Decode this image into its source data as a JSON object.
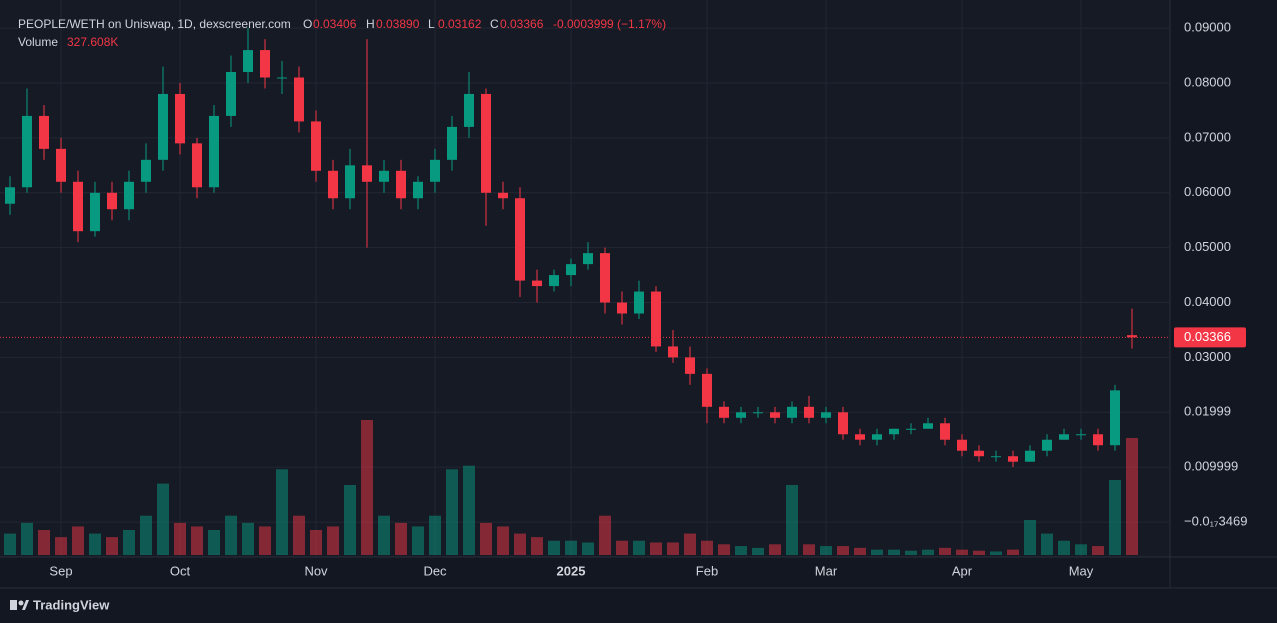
{
  "legend": {
    "title": "PEOPLE/WETH on Uniswap, 1D, dexscreener.com",
    "items": [
      {
        "label": "O",
        "value": "0.03406"
      },
      {
        "label": "H",
        "value": "0.03890"
      },
      {
        "label": "L",
        "value": "0.03162"
      },
      {
        "label": "C",
        "value": "0.03366"
      }
    ],
    "change": "-0.0003999 (−1.17%)",
    "volume_label": "Volume",
    "volume_value": "327.608K"
  },
  "brand": "TradingView",
  "chart_data": {
    "type": "candlestick",
    "up_color": "#089981",
    "down_color": "#f23645",
    "grid": true,
    "categories": [
      null,
      null,
      null,
      "Sep",
      null,
      null,
      null,
      null,
      null,
      null,
      "Oct",
      null,
      null,
      null,
      null,
      null,
      null,
      null,
      "Nov",
      null,
      null,
      null,
      null,
      null,
      null,
      "Dec",
      null,
      null,
      null,
      null,
      null,
      null,
      null,
      "2025",
      null,
      null,
      null,
      null,
      null,
      null,
      null,
      "Feb",
      null,
      null,
      null,
      null,
      null,
      null,
      "Mar",
      null,
      null,
      null,
      null,
      null,
      null,
      null,
      "Apr",
      null,
      null,
      null,
      null,
      null,
      null,
      "May",
      null,
      null,
      null
    ],
    "open": [
      0.058,
      0.061,
      0.074,
      0.068,
      0.062,
      0.053,
      0.06,
      0.057,
      0.062,
      0.066,
      0.078,
      0.069,
      0.061,
      0.074,
      0.082,
      0.086,
      0.081,
      0.081,
      0.073,
      0.064,
      0.059,
      0.065,
      0.062,
      0.064,
      0.059,
      0.062,
      0.066,
      0.072,
      0.078,
      0.06,
      0.059,
      0.044,
      0.043,
      0.045,
      0.047,
      0.049,
      0.04,
      0.038,
      0.042,
      0.032,
      0.03,
      0.027,
      0.021,
      0.019,
      0.02,
      0.02,
      0.019,
      0.021,
      0.019,
      0.02,
      0.016,
      0.015,
      0.016,
      0.017,
      0.017,
      0.018,
      0.015,
      0.013,
      0.012,
      0.012,
      0.011,
      0.013,
      0.015,
      0.016,
      0.016,
      0.014,
      0.03406
    ],
    "high": [
      0.063,
      0.079,
      0.076,
      0.07,
      0.064,
      0.062,
      0.062,
      0.064,
      0.069,
      0.083,
      0.08,
      0.07,
      0.076,
      0.085,
      0.09,
      0.088,
      0.084,
      0.083,
      0.075,
      0.066,
      0.068,
      0.088,
      0.066,
      0.066,
      0.063,
      0.068,
      0.074,
      0.082,
      0.079,
      0.062,
      0.061,
      0.046,
      0.046,
      0.048,
      0.051,
      0.05,
      0.042,
      0.044,
      0.043,
      0.035,
      0.032,
      0.028,
      0.022,
      0.021,
      0.021,
      0.021,
      0.022,
      0.023,
      0.021,
      0.021,
      0.017,
      0.017,
      0.017,
      0.018,
      0.019,
      0.019,
      0.016,
      0.014,
      0.013,
      0.013,
      0.014,
      0.016,
      0.017,
      0.017,
      0.017,
      0.025,
      0.0389
    ],
    "low": [
      0.056,
      0.06,
      0.066,
      0.06,
      0.051,
      0.052,
      0.055,
      0.055,
      0.06,
      0.064,
      0.067,
      0.059,
      0.06,
      0.072,
      0.08,
      0.079,
      0.078,
      0.071,
      0.062,
      0.057,
      0.057,
      0.05,
      0.06,
      0.057,
      0.057,
      0.06,
      0.064,
      0.07,
      0.054,
      0.057,
      0.041,
      0.04,
      0.042,
      0.043,
      0.046,
      0.038,
      0.036,
      0.037,
      0.031,
      0.029,
      0.025,
      0.018,
      0.018,
      0.018,
      0.019,
      0.018,
      0.018,
      0.018,
      0.018,
      0.015,
      0.014,
      0.014,
      0.015,
      0.016,
      0.017,
      0.014,
      0.012,
      0.011,
      0.011,
      0.01,
      0.011,
      0.012,
      0.015,
      0.015,
      0.013,
      0.013,
      0.03162
    ],
    "close": [
      0.061,
      0.074,
      0.068,
      0.062,
      0.053,
      0.06,
      0.057,
      0.062,
      0.066,
      0.078,
      0.069,
      0.061,
      0.074,
      0.082,
      0.086,
      0.081,
      0.081,
      0.073,
      0.064,
      0.059,
      0.065,
      0.062,
      0.064,
      0.059,
      0.062,
      0.066,
      0.072,
      0.078,
      0.06,
      0.059,
      0.044,
      0.043,
      0.045,
      0.047,
      0.049,
      0.04,
      0.038,
      0.042,
      0.032,
      0.03,
      0.027,
      0.021,
      0.019,
      0.02,
      0.02,
      0.019,
      0.021,
      0.019,
      0.02,
      0.016,
      0.015,
      0.016,
      0.017,
      0.017,
      0.018,
      0.015,
      0.013,
      0.012,
      0.012,
      0.011,
      0.013,
      0.015,
      0.016,
      0.016,
      0.014,
      0.024,
      0.03366
    ],
    "volume": [
      60000,
      90000,
      70000,
      50000,
      80000,
      60000,
      50000,
      70000,
      110000,
      200000,
      90000,
      80000,
      70000,
      110000,
      90000,
      80000,
      240000,
      110000,
      70000,
      80000,
      196000,
      378000,
      110000,
      90000,
      80000,
      110000,
      240000,
      250000,
      90000,
      80000,
      60000,
      50000,
      40000,
      40000,
      35000,
      110000,
      40000,
      40000,
      35000,
      35000,
      60000,
      40000,
      30000,
      25000,
      20000,
      30000,
      196000,
      30000,
      25000,
      25000,
      20000,
      15000,
      15000,
      12000,
      15000,
      20000,
      15000,
      12000,
      10000,
      15000,
      98000,
      60000,
      40000,
      30000,
      25000,
      210000,
      327608
    ],
    "ylim": [
      -0.006,
      0.0933
    ],
    "yticks": [
      {
        "value": 0.09,
        "label": "0.09000"
      },
      {
        "value": 0.08,
        "label": "0.08000"
      },
      {
        "value": 0.07,
        "label": "0.07000"
      },
      {
        "value": 0.06,
        "label": "0.06000"
      },
      {
        "value": 0.05,
        "label": "0.05000"
      },
      {
        "value": 0.04,
        "label": "0.04000"
      },
      {
        "value": 0.03,
        "label": "0.03000"
      },
      {
        "value": 0.02,
        "label": "0.01999"
      },
      {
        "value": 0.01,
        "label": "0.009999"
      },
      {
        "value": -3.469e-19,
        "label": "−0.0₁₇3469"
      }
    ]
  }
}
